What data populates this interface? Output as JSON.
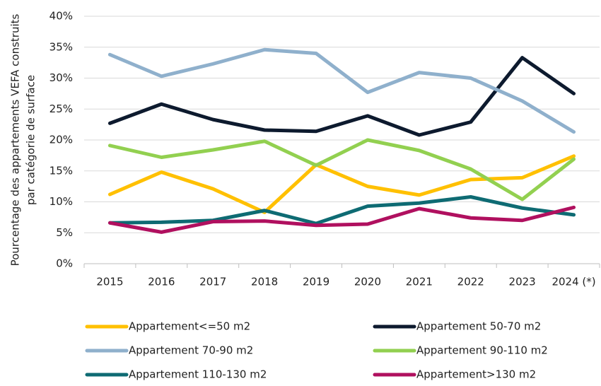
{
  "chart_data": {
    "type": "line",
    "ylabel": [
      "Pourcentage des appartements VEFA construits",
      "par catégorie de surface"
    ],
    "categories": [
      "2015",
      "2016",
      "2017",
      "2018",
      "2019",
      "2020",
      "2021",
      "2022",
      "2023",
      "2024 (*)"
    ],
    "series": [
      {
        "name": "Appartement<=50 m2",
        "color": "#ffc000",
        "values": [
          11.2,
          14.8,
          12.1,
          8.3,
          16.0,
          12.5,
          11.1,
          13.6,
          13.9,
          17.4
        ]
      },
      {
        "name": "Appartement 50-70 m2",
        "color": "#0d1a2e",
        "values": [
          22.7,
          25.8,
          23.3,
          21.6,
          21.4,
          23.9,
          20.8,
          22.9,
          33.3,
          27.5
        ]
      },
      {
        "name": "Appartement 70-90 m2",
        "color": "#8fb0cc",
        "values": [
          33.8,
          30.3,
          32.3,
          34.6,
          34.0,
          27.7,
          30.9,
          30.0,
          26.3,
          21.3
        ]
      },
      {
        "name": "Appartement 90-110 m2",
        "color": "#92d050",
        "values": [
          19.1,
          17.2,
          18.4,
          19.8,
          15.9,
          20.0,
          18.3,
          15.3,
          10.4,
          16.9
        ]
      },
      {
        "name": "Appartement 110-130 m2",
        "color": "#0e6b73",
        "values": [
          6.6,
          6.7,
          7.0,
          8.6,
          6.5,
          9.3,
          9.8,
          10.8,
          9.0,
          7.9
        ]
      },
      {
        "name": "Appartement>130 m2",
        "color": "#b0105f",
        "values": [
          6.6,
          5.1,
          6.8,
          6.9,
          6.2,
          6.4,
          8.9,
          7.4,
          7.0,
          9.1
        ]
      }
    ],
    "ylim": [
      0,
      40
    ],
    "yticks": [
      {
        "value": 0,
        "label": "0%"
      },
      {
        "value": 5,
        "label": "5%"
      },
      {
        "value": 10,
        "label": "10%"
      },
      {
        "value": 15,
        "label": "15%"
      },
      {
        "value": 20,
        "label": "20%"
      },
      {
        "value": 25,
        "label": "25%"
      },
      {
        "value": 30,
        "label": "30%"
      },
      {
        "value": 35,
        "label": "35%"
      },
      {
        "value": 40,
        "label": "40%"
      }
    ],
    "grid": true
  }
}
